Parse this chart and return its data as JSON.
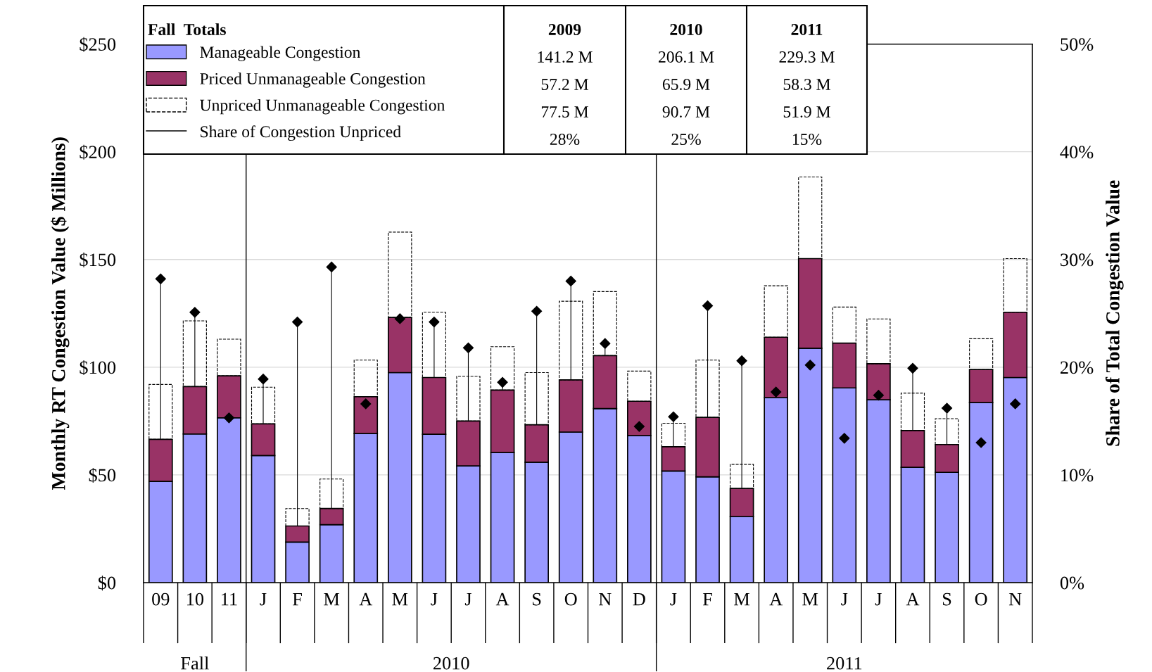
{
  "chart_data": {
    "type": "bar",
    "stacked": true,
    "categories": [
      "09",
      "10",
      "11",
      "J",
      "F",
      "M",
      "A",
      "M",
      "J",
      "J",
      "A",
      "S",
      "O",
      "N",
      "D",
      "J",
      "F",
      "M",
      "A",
      "M",
      "J",
      "J",
      "A",
      "S",
      "O",
      "N"
    ],
    "series": [
      {
        "name": "Manageable Congestion",
        "color": "#9999ff",
        "values": [
          47,
          69,
          76.5,
          59,
          18.8,
          26.9,
          69.2,
          97.5,
          68.9,
          54.2,
          60.4,
          55.9,
          69.9,
          80.8,
          68.2,
          51.8,
          49.1,
          30.7,
          85.9,
          108.8,
          90.4,
          84.9,
          53.5,
          51.2,
          83.6,
          95.2
        ]
      },
      {
        "name": "Priced Unmanageable Congestion",
        "color": "#993366",
        "values": [
          19.5,
          22,
          19.5,
          14.7,
          7.5,
          7.5,
          17.1,
          25.6,
          26.3,
          20.8,
          29,
          17.4,
          24.2,
          24.6,
          16,
          11.3,
          27.6,
          13,
          28,
          41.6,
          20.8,
          16.7,
          17.1,
          12.9,
          15.3,
          30.3
        ]
      },
      {
        "name": "Unpriced Unmanageable Congestion",
        "color": "#000000",
        "line_style": "dashed",
        "values": [
          25.5,
          30.5,
          17,
          17,
          8.1,
          13.7,
          17,
          39.6,
          30.3,
          20.8,
          20.1,
          24.2,
          36.5,
          29.7,
          14,
          10.9,
          26.6,
          11.2,
          23.9,
          37.9,
          16.7,
          20.8,
          17.4,
          12,
          14.3,
          24.9
        ]
      },
      {
        "name": "Share of Congestion Unpriced",
        "type": "scatter",
        "axis": "y2",
        "marker": "diamond",
        "color": "#000000",
        "values": [
          28.2,
          25.1,
          15.3,
          18.9,
          24.2,
          29.3,
          16.6,
          24.5,
          24.2,
          21.8,
          18.6,
          25.2,
          28,
          22.2,
          14.5,
          15.4,
          25.7,
          20.6,
          17.7,
          20.2,
          13.4,
          17.4,
          19.9,
          16.2,
          13,
          16.6
        ],
        "errors": [
          [
            13.3,
            28.2
          ],
          [
            18.2,
            25.1
          ],
          null,
          [
            14.7,
            18.9
          ],
          [
            5.3,
            24.2
          ],
          [
            6.9,
            29.3
          ],
          null,
          null,
          [
            19,
            24.2
          ],
          [
            15,
            21.8
          ],
          [
            17.9,
            18.6
          ],
          [
            14.7,
            25.2
          ],
          [
            18.8,
            28
          ],
          [
            21.1,
            22.2
          ],
          null,
          [
            12.6,
            15.4
          ],
          [
            15.3,
            25.7
          ],
          [
            8.7,
            20.6
          ],
          null,
          null,
          null,
          null,
          [
            14.1,
            19.9
          ],
          [
            12.8,
            16.2
          ],
          null,
          null
        ]
      }
    ],
    "ylabel": "Monthly RT Congestion Value ($ Millions)",
    "y2label": "Share of Total Congestion Value",
    "ylim": [
      0,
      250
    ],
    "yticks": [
      {
        "value": 0,
        "label": "$0"
      },
      {
        "value": 50,
        "label": "$50"
      },
      {
        "value": 100,
        "label": "$100"
      },
      {
        "value": 150,
        "label": "$150"
      },
      {
        "value": 200,
        "label": "$200"
      },
      {
        "value": 250,
        "label": "$250"
      }
    ],
    "y2lim": [
      0,
      50
    ],
    "y2ticks": [
      {
        "value": 0,
        "label": "0%"
      },
      {
        "value": 10,
        "label": "10%"
      },
      {
        "value": 20,
        "label": "20%"
      },
      {
        "value": 30,
        "label": "30%"
      },
      {
        "value": 40,
        "label": "40%"
      },
      {
        "value": 50,
        "label": "50%"
      }
    ],
    "grid": "y",
    "legend": "top left",
    "annotations": [
      "Fall  Totals",
      "2009",
      "2010",
      "2011",
      "141.2 M",
      "206.1 M",
      "229.3 M",
      "57.2 M",
      "65.9 M",
      "58.3 M",
      "77.5 M",
      "90.7 M",
      "51.9 M",
      "28%",
      "25%",
      "15%",
      "Fall",
      "2010",
      "2011"
    ]
  }
}
